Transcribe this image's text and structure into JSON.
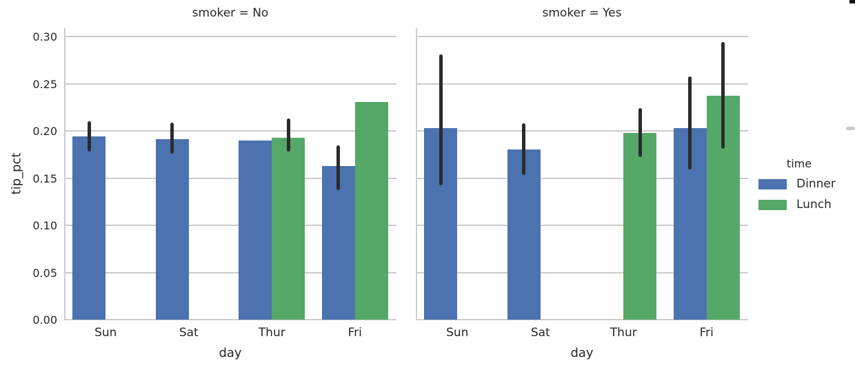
{
  "chart_data": {
    "type": "bar",
    "facet_by": "smoker",
    "xlabel": "day",
    "ylabel": "tip_pct",
    "categories": [
      "Sun",
      "Sat",
      "Thur",
      "Fri"
    ],
    "ytick_labels": [
      "0.00",
      "0.05",
      "0.10",
      "0.15",
      "0.20",
      "0.25",
      "0.30"
    ],
    "ytick_values": [
      0.0,
      0.05,
      0.1,
      0.15,
      0.2,
      0.25,
      0.3
    ],
    "ylim": [
      0,
      0.309
    ],
    "grid": true,
    "colors": {
      "dinner": "#4c72b0",
      "lunch": "#55a868",
      "errorbar": "#2b2b2b",
      "gridline": "#cccccc"
    },
    "legend": {
      "title": "time",
      "position": "right",
      "entries": [
        {
          "label": "Dinner",
          "color": "#4c72b0"
        },
        {
          "label": "Lunch",
          "color": "#55a868"
        }
      ]
    },
    "facets": [
      {
        "title": "smoker = No",
        "key": "no",
        "series": [
          {
            "name": "Dinner",
            "color": "#4c72b0",
            "values": [
              0.194,
              0.191,
              0.19,
              0.163
            ],
            "ci": [
              [
                0.178,
                0.21
              ],
              [
                0.176,
                0.209
              ],
              null,
              [
                0.137,
                0.185
              ]
            ]
          },
          {
            "name": "Lunch",
            "color": "#55a868",
            "values": [
              null,
              null,
              0.193,
              0.231
            ],
            "ci": [
              null,
              null,
              [
                0.178,
                0.213
              ],
              null
            ]
          }
        ]
      },
      {
        "title": "smoker = Yes",
        "key": "yes",
        "series": [
          {
            "name": "Dinner",
            "color": "#4c72b0",
            "values": [
              0.203,
              0.18,
              null,
              0.203
            ],
            "ci": [
              [
                0.142,
                0.281
              ],
              [
                0.153,
                0.208
              ],
              null,
              [
                0.159,
                0.258
              ]
            ]
          },
          {
            "name": "Lunch",
            "color": "#55a868",
            "values": [
              null,
              null,
              0.198,
              0.237
            ],
            "ci": [
              null,
              null,
              [
                0.172,
                0.224
              ],
              [
                0.181,
                0.294
              ]
            ]
          }
        ]
      }
    ]
  }
}
